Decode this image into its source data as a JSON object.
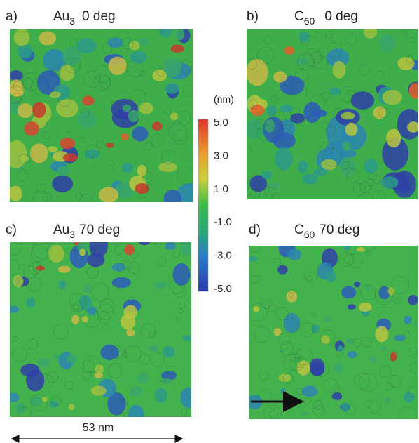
{
  "panels": [
    {
      "label": "a)",
      "material": "Au",
      "subscript": "3",
      "angle": "0 deg"
    },
    {
      "label": "b)",
      "material": "C",
      "subscript": "60",
      "angle": "0 deg"
    },
    {
      "label": "c)",
      "material": "Au",
      "subscript": "3",
      "angle": "70 deg"
    },
    {
      "label": "d)",
      "material": "C",
      "subscript": "60",
      "angle": "70 deg"
    }
  ],
  "colorbar": {
    "unit": "(nm)",
    "ticks": [
      "5.0",
      "3.0",
      "1.0",
      "-1.0",
      "-3.0",
      "-5.0"
    ]
  },
  "scale_bar": "53 nm"
}
